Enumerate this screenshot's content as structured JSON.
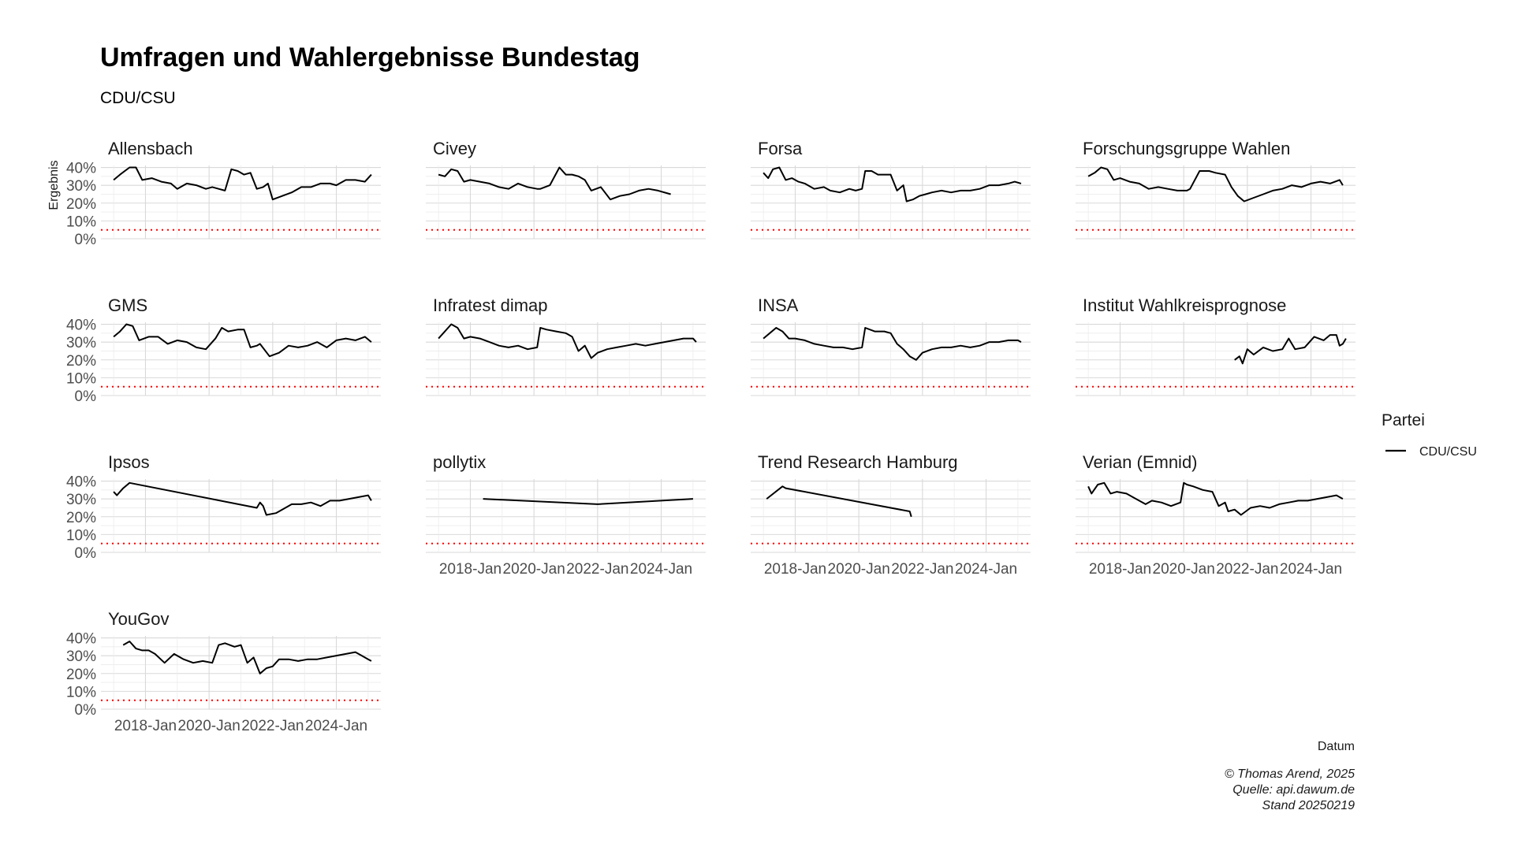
{
  "chart_data": {
    "type": "line",
    "title": "Umfragen und Wahlergebnisse Bundestag",
    "subtitle": "CDU/CSU",
    "xlabel": "Datum",
    "ylabel": "Ergebnis",
    "y_ticks": [
      "0%",
      "10%",
      "20%",
      "30%",
      "40%"
    ],
    "ylim": [
      0,
      42
    ],
    "x_ticks": [
      "2018-Jan",
      "2020-Jan",
      "2022-Jan",
      "2024-Jan"
    ],
    "x_tick_values": [
      2018.0,
      2020.0,
      2022.0,
      2024.0
    ],
    "xlim": [
      2016.6,
      2025.4
    ],
    "threshold": 5,
    "threshold_color": "#ff0000",
    "series_color": "#000000",
    "grid": true,
    "legend": {
      "title": "Partei",
      "position": "right",
      "entries": [
        {
          "label": "CDU/CSU",
          "color": "#000000"
        }
      ]
    },
    "caption": [
      "© Thomas Arend, 2025",
      "Quelle: api.dawum.de",
      "Stand 20250219"
    ],
    "panels": [
      {
        "name": "Allensbach",
        "series": [
          {
            "name": "CDU/CSU",
            "x": [
              2017.0,
              2017.2,
              2017.5,
              2017.7,
              2017.9,
              2018.2,
              2018.5,
              2018.8,
              2019.0,
              2019.3,
              2019.6,
              2019.9,
              2020.1,
              2020.3,
              2020.5,
              2020.7,
              2020.9,
              2021.1,
              2021.3,
              2021.5,
              2021.7,
              2021.85,
              2022.0,
              2022.3,
              2022.6,
              2022.9,
              2023.2,
              2023.5,
              2023.8,
              2024.0,
              2024.3,
              2024.6,
              2024.9,
              2025.1
            ],
            "y": [
              33,
              36,
              40,
              40,
              33,
              34,
              32,
              31,
              28,
              31,
              30,
              28,
              29,
              28,
              27,
              39,
              38,
              36,
              37,
              28,
              29,
              31,
              22,
              24,
              26,
              29,
              29,
              31,
              31,
              30,
              33,
              33,
              32,
              36
            ]
          }
        ]
      },
      {
        "name": "Civey",
        "series": [
          {
            "name": "CDU/CSU",
            "x": [
              2017.0,
              2017.2,
              2017.4,
              2017.6,
              2017.8,
              2018.0,
              2018.3,
              2018.6,
              2018.9,
              2019.2,
              2019.5,
              2019.8,
              2020.1,
              2020.2,
              2020.5,
              2020.8,
              2021.0,
              2021.2,
              2021.4,
              2021.6,
              2021.8,
              2022.1,
              2022.4,
              2022.7,
              2023.0,
              2023.3,
              2023.6,
              2023.9,
              2024.3
            ],
            "y": [
              36,
              35,
              39,
              38,
              32,
              33,
              32,
              31,
              29,
              28,
              31,
              29,
              28,
              28,
              30,
              40,
              36,
              36,
              35,
              33,
              27,
              29,
              22,
              24,
              25,
              27,
              28,
              27,
              25
            ]
          }
        ]
      },
      {
        "name": "Forsa",
        "series": [
          {
            "name": "CDU/CSU",
            "x": [
              2017.0,
              2017.15,
              2017.3,
              2017.5,
              2017.7,
              2017.9,
              2018.1,
              2018.3,
              2018.6,
              2018.9,
              2019.1,
              2019.4,
              2019.7,
              2019.9,
              2020.1,
              2020.2,
              2020.4,
              2020.6,
              2020.8,
              2021.0,
              2021.2,
              2021.4,
              2021.5,
              2021.7,
              2021.9,
              2022.1,
              2022.3,
              2022.6,
              2022.9,
              2023.2,
              2023.5,
              2023.8,
              2024.1,
              2024.4,
              2024.7,
              2024.9,
              2025.1
            ],
            "y": [
              37,
              34,
              39,
              40,
              33,
              34,
              32,
              31,
              28,
              29,
              27,
              26,
              28,
              27,
              28,
              38,
              38,
              36,
              36,
              36,
              27,
              30,
              21,
              22,
              24,
              25,
              26,
              27,
              26,
              27,
              27,
              28,
              30,
              30,
              31,
              32,
              31
            ]
          }
        ]
      },
      {
        "name": "Forschungsgruppe Wahlen",
        "series": [
          {
            "name": "CDU/CSU",
            "x": [
              2017.0,
              2017.2,
              2017.4,
              2017.6,
              2017.8,
              2018.0,
              2018.3,
              2018.6,
              2018.9,
              2019.2,
              2019.5,
              2019.8,
              2020.1,
              2020.2,
              2020.5,
              2020.8,
              2021.0,
              2021.3,
              2021.5,
              2021.7,
              2021.9,
              2022.2,
              2022.5,
              2022.8,
              2023.1,
              2023.4,
              2023.7,
              2024.0,
              2024.3,
              2024.6,
              2024.9,
              2025.0
            ],
            "y": [
              35,
              37,
              40,
              39,
              33,
              34,
              32,
              31,
              28,
              29,
              28,
              27,
              27,
              28,
              38,
              38,
              37,
              36,
              29,
              24,
              21,
              23,
              25,
              27,
              28,
              30,
              29,
              31,
              32,
              31,
              33,
              30
            ]
          }
        ]
      },
      {
        "name": "GMS",
        "series": [
          {
            "name": "CDU/CSU",
            "x": [
              2017.0,
              2017.2,
              2017.4,
              2017.6,
              2017.8,
              2018.1,
              2018.4,
              2018.7,
              2019.0,
              2019.3,
              2019.6,
              2019.9,
              2020.2,
              2020.4,
              2020.6,
              2020.9,
              2021.1,
              2021.3,
              2021.5,
              2021.6,
              2021.9,
              2022.2,
              2022.5,
              2022.8,
              2023.1,
              2023.4,
              2023.7,
              2024.0,
              2024.3,
              2024.6,
              2024.9,
              2025.1
            ],
            "y": [
              33,
              36,
              40,
              39,
              31,
              33,
              33,
              29,
              31,
              30,
              27,
              26,
              32,
              38,
              36,
              37,
              37,
              27,
              28,
              29,
              22,
              24,
              28,
              27,
              28,
              30,
              27,
              31,
              32,
              31,
              33,
              30
            ]
          }
        ]
      },
      {
        "name": "Infratest dimap",
        "series": [
          {
            "name": "CDU/CSU",
            "x": [
              2017.0,
              2017.2,
              2017.4,
              2017.6,
              2017.8,
              2018.0,
              2018.3,
              2018.6,
              2018.9,
              2019.2,
              2019.5,
              2019.8,
              2020.1,
              2020.2,
              2020.4,
              2020.7,
              2021.0,
              2021.2,
              2021.4,
              2021.6,
              2021.8,
              2022.0,
              2022.3,
              2022.6,
              2022.9,
              2023.2,
              2023.5,
              2023.8,
              2024.1,
              2024.4,
              2024.7,
              2025.0,
              2025.1
            ],
            "y": [
              32,
              36,
              40,
              38,
              32,
              33,
              32,
              30,
              28,
              27,
              28,
              26,
              27,
              38,
              37,
              36,
              35,
              33,
              25,
              28,
              21,
              24,
              26,
              27,
              28,
              29,
              28,
              29,
              30,
              31,
              32,
              32,
              30
            ]
          }
        ]
      },
      {
        "name": "INSA",
        "series": [
          {
            "name": "CDU/CSU",
            "x": [
              2017.0,
              2017.2,
              2017.4,
              2017.6,
              2017.8,
              2018.0,
              2018.3,
              2018.6,
              2018.9,
              2019.2,
              2019.5,
              2019.8,
              2020.1,
              2020.2,
              2020.5,
              2020.8,
              2021.0,
              2021.2,
              2021.4,
              2021.6,
              2021.8,
              2022.0,
              2022.3,
              2022.6,
              2022.9,
              2023.2,
              2023.5,
              2023.8,
              2024.1,
              2024.4,
              2024.7,
              2025.0,
              2025.1
            ],
            "y": [
              32,
              35,
              38,
              36,
              32,
              32,
              31,
              29,
              28,
              27,
              27,
              26,
              27,
              38,
              36,
              36,
              35,
              29,
              26,
              22,
              20,
              24,
              26,
              27,
              27,
              28,
              27,
              28,
              30,
              30,
              31,
              31,
              30
            ]
          }
        ]
      },
      {
        "name": "Institut Wahlkreisprognose",
        "series": [
          {
            "name": "CDU/CSU",
            "x": [
              2021.6,
              2021.75,
              2021.85,
              2022.0,
              2022.2,
              2022.5,
              2022.8,
              2023.1,
              2023.3,
              2023.5,
              2023.8,
              2024.1,
              2024.4,
              2024.6,
              2024.8,
              2024.9,
              2025.0,
              2025.1
            ],
            "y": [
              20,
              22,
              18,
              26,
              23,
              27,
              25,
              26,
              32,
              26,
              27,
              33,
              31,
              34,
              34,
              28,
              29,
              32
            ]
          }
        ]
      },
      {
        "name": "Ipsos",
        "series": [
          {
            "name": "CDU/CSU",
            "x": [
              2017.0,
              2017.1,
              2017.3,
              2017.5,
              2021.5,
              2021.6,
              2021.7,
              2021.8,
              2022.1,
              2022.3,
              2022.6,
              2022.9,
              2023.2,
              2023.5,
              2023.8,
              2024.1,
              2024.4,
              2024.7,
              2025.0,
              2025.1
            ],
            "y": [
              34,
              32,
              36,
              39,
              25,
              28,
              26,
              21,
              22,
              24,
              27,
              27,
              28,
              26,
              29,
              29,
              30,
              31,
              32,
              29
            ]
          }
        ]
      },
      {
        "name": "pollytix",
        "series": [
          {
            "name": "CDU/CSU",
            "x": [
              2018.4,
              2022.0,
              2025.0
            ],
            "y": [
              30,
              27,
              30
            ]
          }
        ]
      },
      {
        "name": "Trend Research Hamburg",
        "series": [
          {
            "name": "CDU/CSU",
            "x": [
              2017.1,
              2017.6,
              2017.7,
              2021.6,
              2021.65
            ],
            "y": [
              30,
              37,
              36,
              23,
              20
            ]
          }
        ]
      },
      {
        "name": "Verian (Emnid)",
        "series": [
          {
            "name": "CDU/CSU",
            "x": [
              2017.0,
              2017.1,
              2017.3,
              2017.5,
              2017.7,
              2017.9,
              2018.2,
              2018.5,
              2018.8,
              2019.0,
              2019.3,
              2019.6,
              2019.9,
              2020.0,
              2020.1,
              2020.3,
              2020.6,
              2020.9,
              2021.1,
              2021.3,
              2021.4,
              2021.6,
              2021.8,
              2022.1,
              2022.4,
              2022.7,
              2023.0,
              2023.3,
              2023.6,
              2023.9,
              2024.2,
              2024.5,
              2024.8,
              2025.0
            ],
            "y": [
              37,
              33,
              38,
              39,
              33,
              34,
              33,
              30,
              27,
              29,
              28,
              26,
              28,
              39,
              38,
              37,
              35,
              34,
              26,
              28,
              23,
              24,
              21,
              25,
              26,
              25,
              27,
              28,
              29,
              29,
              30,
              31,
              32,
              30
            ]
          }
        ]
      },
      {
        "name": "YouGov",
        "series": [
          {
            "name": "CDU/CSU",
            "x": [
              2017.3,
              2017.5,
              2017.7,
              2017.9,
              2018.1,
              2018.3,
              2018.6,
              2018.9,
              2019.2,
              2019.5,
              2019.8,
              2020.1,
              2020.3,
              2020.5,
              2020.8,
              2021.0,
              2021.2,
              2021.4,
              2021.6,
              2021.8,
              2022.0,
              2022.2,
              2022.5,
              2022.8,
              2023.1,
              2023.4,
              2023.7,
              2024.0,
              2024.3,
              2024.6,
              2024.8,
              2025.0,
              2025.1
            ],
            "y": [
              36,
              38,
              34,
              33,
              33,
              31,
              26,
              31,
              28,
              26,
              27,
              26,
              36,
              37,
              35,
              36,
              26,
              29,
              20,
              23,
              24,
              28,
              28,
              27,
              28,
              28,
              29,
              30,
              31,
              32,
              30,
              28,
              27
            ]
          }
        ]
      }
    ]
  }
}
